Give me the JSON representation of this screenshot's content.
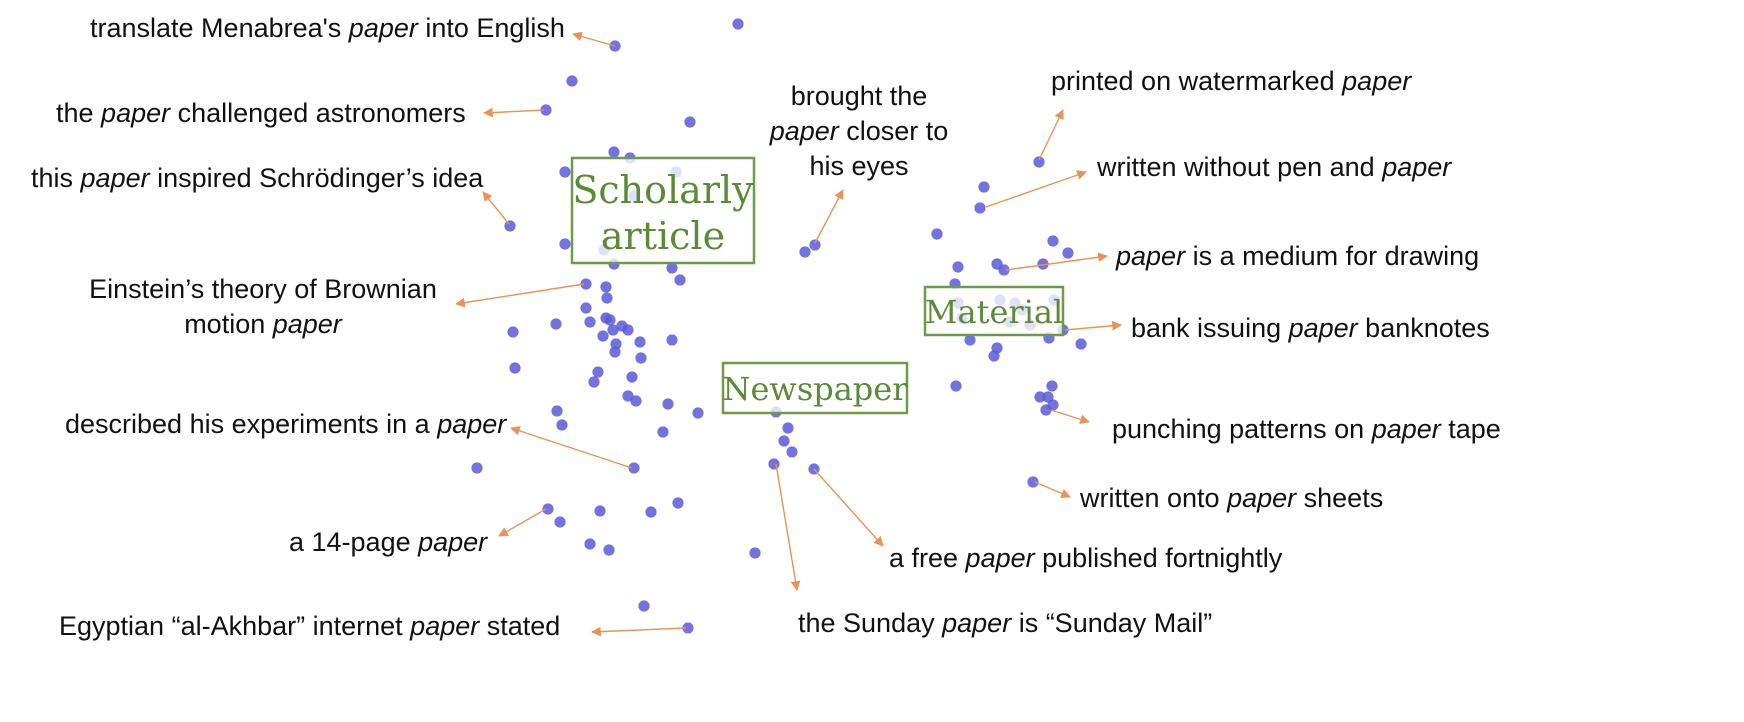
{
  "colors": {
    "point": "#5a5ad8",
    "arrow": "#e8935a",
    "cluster": "#5b8a3a",
    "text": "#111111"
  },
  "clusters": [
    {
      "id": "scholarly",
      "lines": [
        "Scholarly",
        "article"
      ]
    },
    {
      "id": "newspaper",
      "lines": [
        "Newspaper"
      ]
    },
    {
      "id": "material",
      "lines": [
        "Material"
      ]
    }
  ],
  "annotations": [
    {
      "id": "menabrea",
      "parts": [
        "translate Menabrea's ",
        "paper",
        " into English"
      ]
    },
    {
      "id": "astronomers",
      "parts": [
        "the ",
        "paper",
        " challenged astronomers"
      ]
    },
    {
      "id": "schrodinger",
      "parts": [
        "this ",
        "paper",
        " inspired Schrödinger’s idea"
      ]
    },
    {
      "id": "einstein-1",
      "parts": [
        "Einstein’s theory of Brownian"
      ]
    },
    {
      "id": "einstein-2",
      "parts": [
        "motion ",
        "paper",
        ""
      ]
    },
    {
      "id": "experiments",
      "parts": [
        "described his experiments in a ",
        "paper",
        ""
      ]
    },
    {
      "id": "fourteen-page",
      "parts": [
        "a 14-page ",
        "paper",
        ""
      ]
    },
    {
      "id": "akhbar",
      "parts": [
        "Egyptian “al-Akhbar” internet ",
        "paper",
        " stated"
      ]
    },
    {
      "id": "brought-1",
      "parts": [
        "brought the"
      ]
    },
    {
      "id": "brought-2",
      "parts": [
        "",
        "paper",
        " closer to"
      ]
    },
    {
      "id": "brought-3",
      "parts": [
        "his eyes"
      ]
    },
    {
      "id": "free-paper",
      "parts": [
        "a free ",
        "paper",
        " published fortnightly"
      ]
    },
    {
      "id": "sunday",
      "parts": [
        "the Sunday ",
        "paper",
        " is “Sunday Mail”"
      ]
    },
    {
      "id": "watermarked",
      "parts": [
        "printed on watermarked ",
        "paper",
        ""
      ]
    },
    {
      "id": "pen-and-paper",
      "parts": [
        "written without pen and ",
        "paper",
        ""
      ]
    },
    {
      "id": "drawing",
      "parts": [
        "",
        "paper",
        " is a medium for drawing"
      ]
    },
    {
      "id": "banknotes",
      "parts": [
        "bank issuing ",
        "paper",
        " banknotes"
      ]
    },
    {
      "id": "tape",
      "parts": [
        "punching patterns on ",
        "paper",
        " tape"
      ]
    },
    {
      "id": "sheets",
      "parts": [
        "written onto ",
        "paper",
        " sheets"
      ]
    }
  ]
}
